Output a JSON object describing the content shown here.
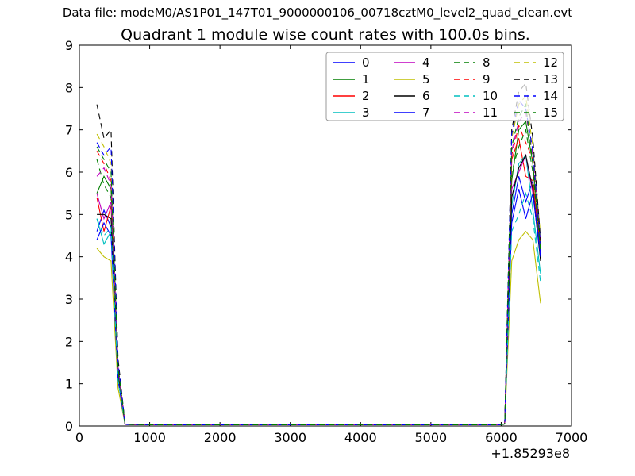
{
  "figure": {
    "data_file_label": "Data file: modeM0/AS1P01_147T01_9000000106_00718cztM0_level2_quad_clean.evt",
    "background": "#ffffff",
    "frame_color": "#000000",
    "legend_border_color": "#999999"
  },
  "chart_data": {
    "type": "line",
    "title": "Quadrant 1 module wise count rates with 100.0s bins.",
    "xlabel": "",
    "ylabel": "",
    "xlim": [
      0,
      7000
    ],
    "ylim": [
      0,
      9
    ],
    "xticks": [
      0,
      1000,
      2000,
      3000,
      4000,
      5000,
      6000,
      7000
    ],
    "yticks": [
      0,
      1,
      2,
      3,
      4,
      5,
      6,
      7,
      8,
      9
    ],
    "x_offset_text": "+1.85293e8",
    "grid": false,
    "legend": {
      "ncol": 4,
      "loc": "upper center",
      "rows": 4
    },
    "x": [
      250,
      350,
      450,
      550,
      650,
      1000,
      2000,
      3000,
      4000,
      5000,
      6000,
      6050,
      6150,
      6250,
      6350,
      6450,
      6560
    ],
    "series": [
      {
        "name": "0",
        "color": "#0000ff",
        "linestyle": "solid",
        "values": [
          4.6,
          5.1,
          4.7,
          1.2,
          0.04,
          0.03,
          0.03,
          0.03,
          0.03,
          0.03,
          0.03,
          0.05,
          5.0,
          5.9,
          5.3,
          5.8,
          4.1
        ]
      },
      {
        "name": "1",
        "color": "#007f00",
        "linestyle": "solid",
        "values": [
          5.5,
          5.9,
          5.6,
          1.4,
          0.04,
          0.03,
          0.03,
          0.03,
          0.03,
          0.03,
          0.03,
          0.05,
          5.8,
          7.0,
          7.2,
          6.2,
          4.3
        ]
      },
      {
        "name": "2",
        "color": "#ff0000",
        "linestyle": "solid",
        "values": [
          5.4,
          4.6,
          5.2,
          1.3,
          0.04,
          0.03,
          0.03,
          0.03,
          0.03,
          0.03,
          0.03,
          0.05,
          6.3,
          6.8,
          5.9,
          5.8,
          4.2
        ]
      },
      {
        "name": "3",
        "color": "#00bfbf",
        "linestyle": "solid",
        "values": [
          4.9,
          4.3,
          4.6,
          1.1,
          0.04,
          0.03,
          0.03,
          0.03,
          0.03,
          0.03,
          0.03,
          0.05,
          5.2,
          6.2,
          6.4,
          5.1,
          3.6
        ]
      },
      {
        "name": "4",
        "color": "#bf00bf",
        "linestyle": "solid",
        "values": [
          5.5,
          4.9,
          5.3,
          1.2,
          0.04,
          0.03,
          0.03,
          0.03,
          0.03,
          0.03,
          0.03,
          0.05,
          5.6,
          6.0,
          6.4,
          5.5,
          4.0
        ]
      },
      {
        "name": "5",
        "color": "#bfbf00",
        "linestyle": "solid",
        "values": [
          4.2,
          4.0,
          3.9,
          0.9,
          0.04,
          0.03,
          0.03,
          0.03,
          0.03,
          0.03,
          0.03,
          0.05,
          3.9,
          4.4,
          4.6,
          4.4,
          2.9
        ]
      },
      {
        "name": "6",
        "color": "#000000",
        "linestyle": "solid",
        "values": [
          5.0,
          5.0,
          4.9,
          1.2,
          0.04,
          0.03,
          0.03,
          0.03,
          0.03,
          0.03,
          0.03,
          0.05,
          5.4,
          6.1,
          6.4,
          5.6,
          3.9
        ]
      },
      {
        "name": "7",
        "color": "#0000ff",
        "linestyle": "solid",
        "values": [
          4.4,
          4.8,
          4.5,
          1.1,
          0.04,
          0.03,
          0.03,
          0.03,
          0.03,
          0.03,
          0.03,
          0.05,
          4.8,
          5.6,
          4.9,
          5.5,
          4.0
        ]
      },
      {
        "name": "8",
        "color": "#007f00",
        "linestyle": "dashed",
        "values": [
          6.3,
          5.7,
          5.4,
          1.3,
          0.04,
          0.03,
          0.03,
          0.03,
          0.03,
          0.03,
          0.03,
          0.05,
          6.0,
          6.6,
          7.0,
          6.0,
          4.2
        ]
      },
      {
        "name": "9",
        "color": "#ff0000",
        "linestyle": "dashed",
        "values": [
          6.5,
          6.2,
          5.8,
          1.4,
          0.04,
          0.03,
          0.03,
          0.03,
          0.03,
          0.03,
          0.03,
          0.05,
          6.4,
          7.1,
          6.7,
          6.3,
          4.3
        ]
      },
      {
        "name": "10",
        "color": "#00bfbf",
        "linestyle": "dashed",
        "values": [
          4.9,
          4.5,
          4.7,
          1.1,
          0.04,
          0.03,
          0.03,
          0.03,
          0.03,
          0.03,
          0.03,
          0.05,
          4.6,
          5.0,
          5.5,
          4.9,
          3.4
        ]
      },
      {
        "name": "11",
        "color": "#bf00bf",
        "linestyle": "dashed",
        "values": [
          5.9,
          6.1,
          5.7,
          1.4,
          0.04,
          0.03,
          0.03,
          0.03,
          0.03,
          0.03,
          0.03,
          0.05,
          6.5,
          7.2,
          7.4,
          6.4,
          4.4
        ]
      },
      {
        "name": "12",
        "color": "#bfbf00",
        "linestyle": "dashed",
        "values": [
          6.9,
          6.6,
          6.2,
          1.5,
          0.04,
          0.03,
          0.03,
          0.03,
          0.03,
          0.03,
          0.03,
          0.05,
          6.8,
          7.6,
          7.8,
          6.6,
          4.5
        ]
      },
      {
        "name": "13",
        "color": "#000000",
        "linestyle": "dashed",
        "values": [
          7.6,
          6.8,
          7.0,
          1.6,
          0.04,
          0.03,
          0.03,
          0.03,
          0.03,
          0.03,
          0.03,
          0.05,
          7.0,
          7.9,
          8.1,
          6.8,
          4.4
        ]
      },
      {
        "name": "14",
        "color": "#0000ff",
        "linestyle": "dashed",
        "values": [
          6.7,
          6.4,
          6.6,
          1.5,
          0.04,
          0.03,
          0.03,
          0.03,
          0.03,
          0.03,
          0.03,
          0.05,
          6.9,
          7.7,
          7.5,
          6.5,
          4.3
        ]
      },
      {
        "name": "15",
        "color": "#007f00",
        "linestyle": "dashed",
        "values": [
          6.6,
          6.3,
          6.0,
          1.4,
          0.04,
          0.03,
          0.03,
          0.03,
          0.03,
          0.03,
          0.03,
          0.05,
          6.6,
          7.3,
          7.6,
          6.2,
          4.1
        ]
      }
    ]
  }
}
